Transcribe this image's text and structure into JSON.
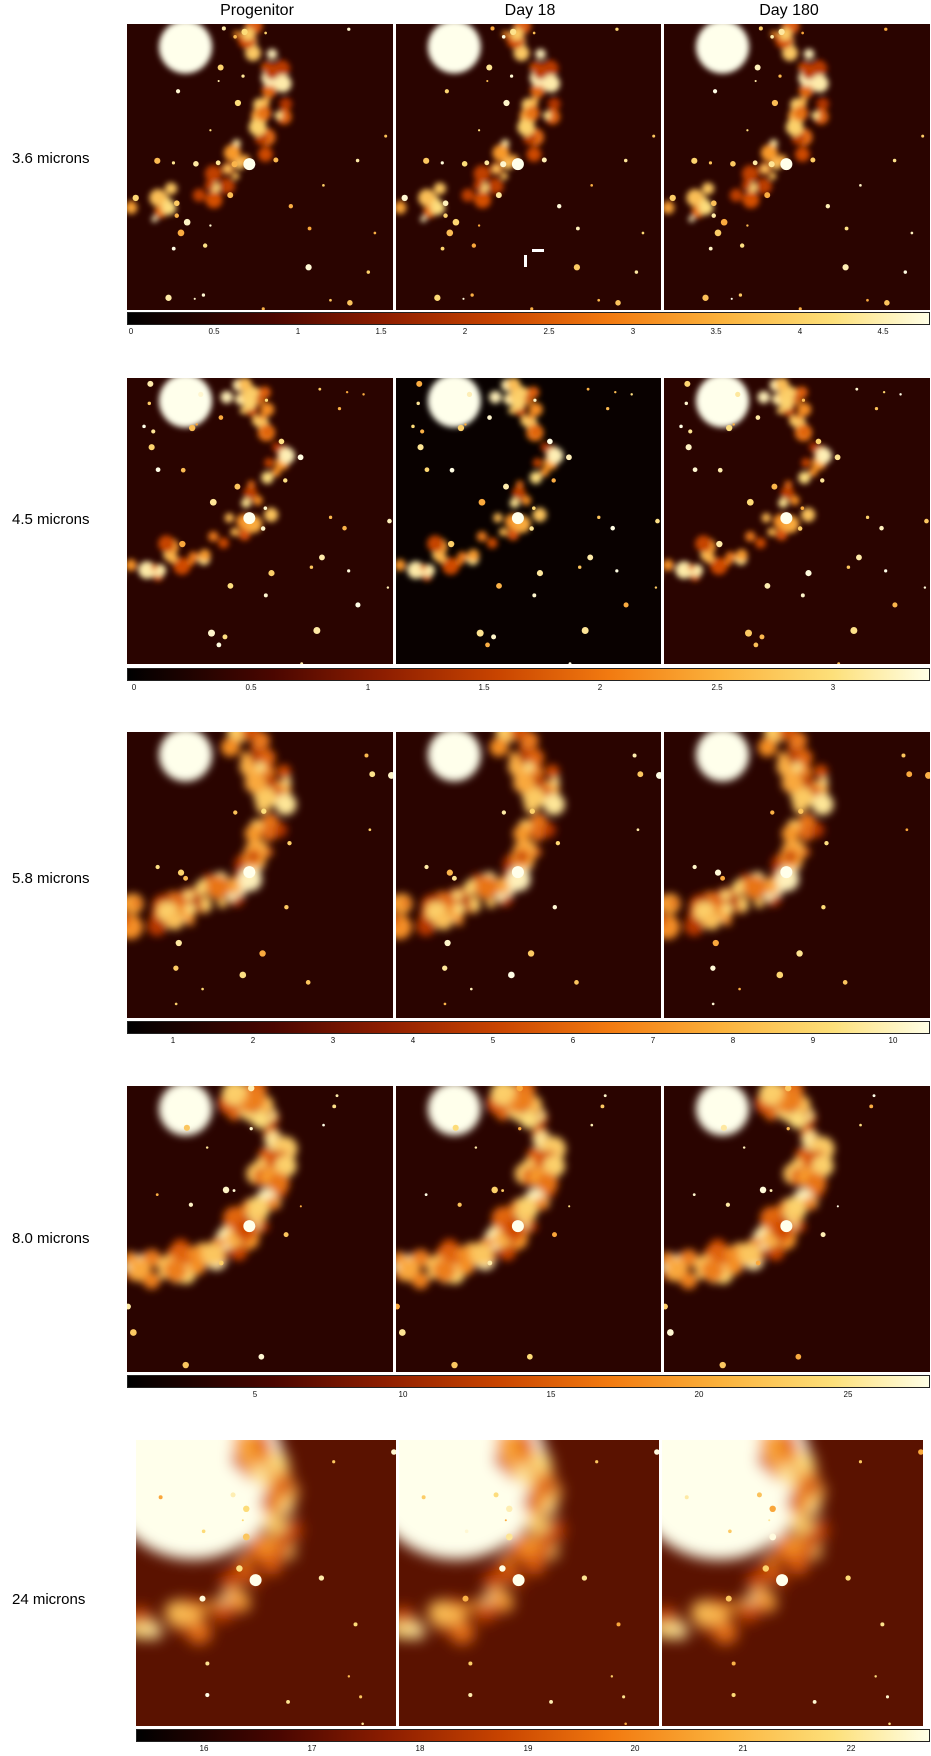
{
  "columns": [
    "Progenitor",
    "Day 18",
    "Day 180"
  ],
  "rows": [
    {
      "label": "3.6 microns",
      "ticks": [
        "0",
        "0.5",
        "1",
        "1.5",
        "2",
        "2.5",
        "3",
        "3.5",
        "4",
        "4.5"
      ]
    },
    {
      "label": "4.5 microns",
      "ticks": [
        "0",
        "0.5",
        "1",
        "1.5",
        "2",
        "2.5",
        "3"
      ]
    },
    {
      "label": "5.8 microns",
      "ticks": [
        "1",
        "2",
        "3",
        "4",
        "5",
        "6",
        "7",
        "8",
        "9",
        "10"
      ]
    },
    {
      "label": "8.0 microns",
      "ticks": [
        "5",
        "10",
        "15",
        "20",
        "25"
      ]
    },
    {
      "label": "24 microns",
      "ticks": [
        "16",
        "17",
        "18",
        "19",
        "20",
        "21",
        "22"
      ]
    }
  ],
  "colormap": {
    "low": "#000000",
    "mid": "#c84400",
    "high": "#ffffe6"
  }
}
